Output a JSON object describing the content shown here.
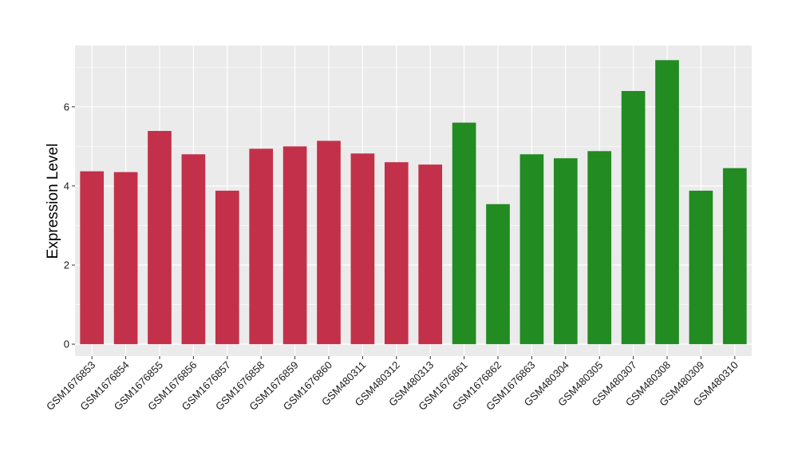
{
  "chart_data": {
    "type": "bar",
    "title": "",
    "xlabel": "",
    "ylabel": "Expression Level",
    "ylim": [
      -0.3,
      7.55
    ],
    "yticks": [
      0,
      2,
      4,
      6
    ],
    "grid": true,
    "legend": "none",
    "panel_background": "#ebebeb",
    "gridline_color": "#ffffff",
    "categories": [
      "GSM1676853",
      "GSM1676854",
      "GSM1676855",
      "GSM1676856",
      "GSM1676857",
      "GSM1676858",
      "GSM1676859",
      "GSM1676860",
      "GSM480311",
      "GSM480312",
      "GSM480313",
      "GSM1676861",
      "GSM1676862",
      "GSM1676863",
      "GSM480304",
      "GSM480305",
      "GSM480307",
      "GSM480308",
      "GSM480309",
      "GSM480310"
    ],
    "values": [
      4.37,
      4.35,
      5.39,
      4.8,
      3.88,
      4.94,
      5.0,
      5.14,
      4.82,
      4.6,
      4.54,
      5.6,
      3.54,
      4.8,
      4.7,
      4.88,
      6.4,
      7.18,
      3.88,
      4.45
    ],
    "groups": [
      {
        "color": "#c3304a",
        "start": 0,
        "end": 10
      },
      {
        "color": "#228b22",
        "start": 11,
        "end": 19
      }
    ]
  }
}
